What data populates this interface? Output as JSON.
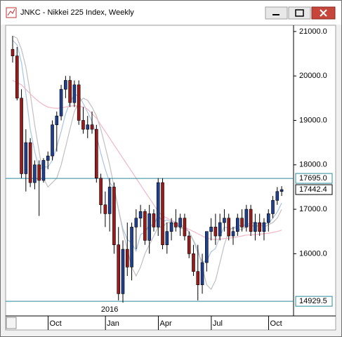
{
  "chart_data": {
    "type": "candlestick",
    "title": "JNKC - Nikkei 225 Index, Weekly",
    "categories": [
      null,
      null,
      null,
      null,
      null,
      null,
      null,
      null,
      null,
      "Oct",
      null,
      null,
      null,
      null,
      null,
      null,
      null,
      null,
      null,
      null,
      null,
      null,
      "Jan",
      null,
      null,
      null,
      null,
      null,
      null,
      null,
      null,
      null,
      null,
      null,
      "Apr",
      null,
      null,
      null,
      null,
      null,
      null,
      null,
      null,
      null,
      null,
      null,
      "Jul",
      null,
      null,
      null,
      null,
      null,
      null,
      null,
      null,
      null,
      null,
      null,
      null,
      "Oct",
      null,
      null
    ],
    "annotations": [
      {
        "text": "2016",
        "category": "Jan"
      }
    ],
    "open": [
      20600,
      20450,
      19500,
      17800,
      18500,
      17600,
      18000,
      17650,
      18100,
      18200,
      18900,
      19100,
      19700,
      19900,
      19400,
      19800,
      19000,
      18800,
      18900,
      18800,
      17700,
      17100,
      16900,
      17500,
      16200,
      15100,
      16100,
      15700,
      16600,
      16800,
      16950,
      16300,
      16900,
      16600,
      17600,
      16200,
      16500,
      16700,
      16600,
      16800,
      16400,
      16000,
      15600,
      15300,
      15800,
      16500,
      16600,
      16400,
      16700,
      16800,
      16400,
      16500,
      16800,
      16600,
      17000,
      16500,
      16700,
      16500,
      16700,
      16900,
      17200,
      17400
    ],
    "high": [
      20900,
      20650,
      19700,
      18800,
      18600,
      18100,
      18100,
      18150,
      18300,
      19000,
      19200,
      19800,
      20000,
      20000,
      19900,
      19900,
      19300,
      19100,
      19200,
      18900,
      17800,
      17400,
      17700,
      17600,
      16600,
      16300,
      16700,
      16700,
      17000,
      17100,
      17000,
      17100,
      17000,
      17700,
      17700,
      16700,
      16800,
      17000,
      16900,
      16900,
      16500,
      16200,
      16200,
      16000,
      16500,
      16800,
      16900,
      16900,
      17000,
      16900,
      16600,
      16900,
      17000,
      17100,
      17100,
      16900,
      16900,
      16800,
      17000,
      17300,
      17500,
      17520
    ],
    "low": [
      20300,
      19450,
      17700,
      17400,
      17500,
      17450,
      16850,
      17600,
      17900,
      18100,
      18300,
      19000,
      19500,
      19300,
      19300,
      18900,
      18700,
      18600,
      18700,
      17600,
      16900,
      16600,
      16500,
      16000,
      14950,
      14900,
      15500,
      15400,
      16100,
      16600,
      16200,
      16000,
      16500,
      16400,
      16100,
      16000,
      16300,
      16500,
      16400,
      16300,
      15900,
      15500,
      14950,
      15100,
      15600,
      16300,
      16200,
      16300,
      16500,
      16300,
      16200,
      16400,
      16500,
      16500,
      16400,
      16300,
      16400,
      16300,
      16500,
      16800,
      17100,
      17300
    ],
    "close": [
      20450,
      19500,
      17800,
      18500,
      17600,
      18000,
      17650,
      18100,
      18200,
      18900,
      19100,
      19700,
      19900,
      19400,
      19800,
      19000,
      18800,
      18900,
      18800,
      17700,
      17100,
      16900,
      17500,
      16200,
      15100,
      16100,
      15700,
      16600,
      16800,
      16950,
      16300,
      16900,
      16600,
      17600,
      16200,
      16500,
      16700,
      16600,
      16800,
      16400,
      16000,
      15600,
      15300,
      15800,
      16500,
      16600,
      16400,
      16700,
      16800,
      16400,
      16500,
      16800,
      16600,
      17000,
      16500,
      16700,
      16500,
      16700,
      16900,
      17200,
      17400,
      17442.4
    ],
    "up_color": "#1f3f8f",
    "down_color": "#9b1b1b",
    "overlays": [
      {
        "color": "#a9c4e4",
        "values": [
          20800,
          20700,
          20300,
          19600,
          18800,
          18300,
          17900,
          17950,
          17950,
          18100,
          18400,
          18750,
          19150,
          19400,
          19580,
          19560,
          19380,
          19180,
          18980,
          18660,
          18260,
          17900,
          17600,
          17480,
          17000,
          16560,
          16320,
          16240,
          16060,
          16430,
          16490,
          16650,
          16630,
          16870,
          16720,
          16760,
          16720,
          16720,
          16560,
          16600,
          16500,
          16280,
          16020,
          15820,
          15840,
          16040,
          16120,
          16400,
          16600,
          16580,
          16560,
          16640,
          16620,
          16660,
          16680,
          16720,
          16660,
          16680,
          16680,
          16800,
          16940,
          17140
        ]
      },
      {
        "color": "#c0c0c0",
        "values": [
          20900,
          20850,
          20600,
          20200,
          19600,
          18900,
          18300,
          17700,
          17500,
          17600,
          17700,
          18000,
          18400,
          18800,
          19200,
          19400,
          19500,
          19450,
          19300,
          19100,
          18800,
          18400,
          18000,
          17500,
          17000,
          16500,
          16100,
          15700,
          15500,
          15700,
          16000,
          16200,
          16400,
          16600,
          16600,
          16700,
          16700,
          16650,
          16600,
          16550,
          16500,
          16300,
          16100,
          15700,
          15300,
          15200,
          15400,
          15800,
          16200,
          16500,
          16600,
          16550,
          16550,
          16600,
          16650,
          16600,
          16650,
          16600,
          16650,
          16700,
          16800,
          17000
        ]
      },
      {
        "color": "#f2b6c6",
        "values": [
          19900,
          19850,
          19800,
          19700,
          19600,
          19500,
          19420,
          19350,
          19300,
          19280,
          19270,
          19280,
          19300,
          19320,
          19330,
          19320,
          19300,
          19250,
          19150,
          19050,
          18900,
          18750,
          18600,
          18450,
          18300,
          18150,
          18000,
          17850,
          17700,
          17550,
          17400,
          17250,
          17100,
          16950,
          16850,
          16800,
          16750,
          16700,
          16650,
          16600,
          16550,
          16500,
          16450,
          16400,
          16350,
          16330,
          16320,
          16330,
          16340,
          16350,
          16360,
          16380,
          16400,
          16420,
          16420,
          16430,
          16440,
          16450,
          16460,
          16480,
          16500,
          16530
        ]
      }
    ],
    "hlines": [
      {
        "value": 17695,
        "label": "17695.0"
      },
      {
        "value": 14929.5,
        "label": "14929.5"
      }
    ],
    "hline_color": "#2a8a9a",
    "ylim": [
      14600,
      21140
    ],
    "yticks": [
      {
        "value": 16000,
        "label": "16000.0"
      },
      {
        "value": 17000,
        "label": "17000.0"
      },
      {
        "value": 18000,
        "label": "18000.0"
      },
      {
        "value": 19000,
        "label": "19000.0"
      },
      {
        "value": 20000,
        "label": "20000.0"
      },
      {
        "value": 21000,
        "label": "21000.0"
      }
    ]
  }
}
